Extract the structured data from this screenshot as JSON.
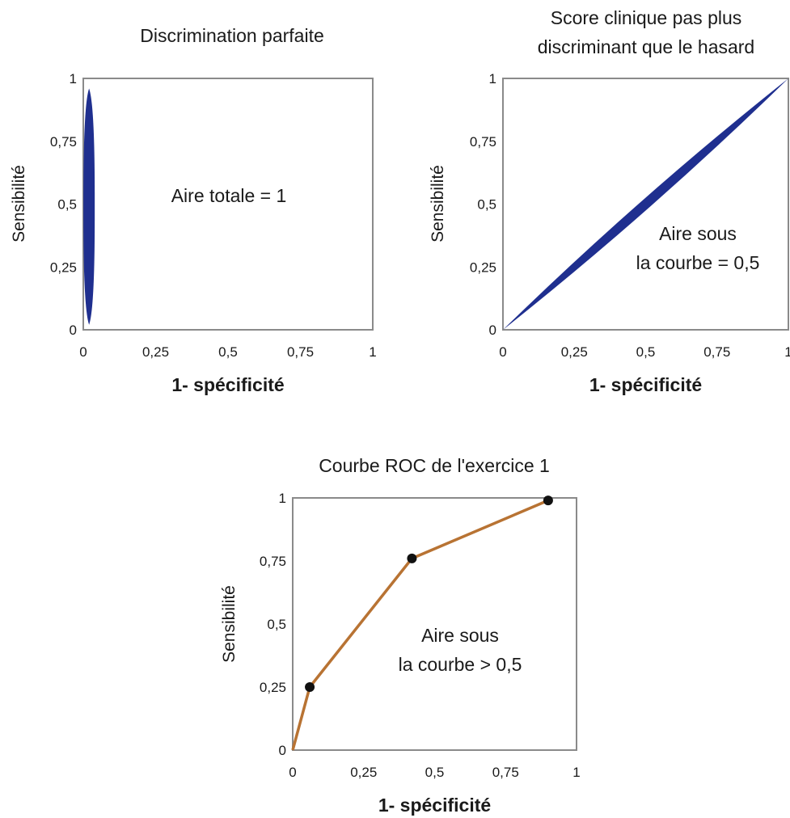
{
  "chart_data": [
    {
      "type": "line",
      "title": [
        "Discrimination parfaite"
      ],
      "xlabel": "1- spécificité",
      "ylabel": "Sensibilité",
      "xlim": [
        0,
        1
      ],
      "ylim": [
        0,
        1
      ],
      "x_ticks": [
        "0",
        "0,25",
        "0,5",
        "0,75",
        "1"
      ],
      "y_ticks": [
        "0",
        "0,25",
        "0,5",
        "0,75",
        "1"
      ],
      "curve": {
        "x": [
          0.02,
          0.02
        ],
        "y": [
          0.02,
          0.96
        ],
        "color": "#1f2f8f"
      },
      "points": [],
      "annotation": [
        "Aire totale = 1"
      ],
      "grid": false
    },
    {
      "type": "line",
      "title": [
        "Score clinique pas plus",
        "discriminant que le hasard"
      ],
      "xlabel": "1- spécificité",
      "ylabel": "Sensibilité",
      "xlim": [
        0,
        1
      ],
      "ylim": [
        0,
        1
      ],
      "x_ticks": [
        "0",
        "0,25",
        "0,5",
        "0,75",
        "1"
      ],
      "y_ticks": [
        "0",
        "0,25",
        "0,5",
        "0,75",
        "1"
      ],
      "curve": {
        "x": [
          0,
          1
        ],
        "y": [
          0,
          1
        ],
        "color": "#1f2f8f"
      },
      "points": [],
      "annotation": [
        "Aire sous",
        "la courbe = 0,5"
      ],
      "grid": false
    },
    {
      "type": "line",
      "title": [
        "Courbe ROC de l'exercice 1"
      ],
      "xlabel": "1- spécificité",
      "ylabel": "Sensibilité",
      "xlim": [
        0,
        1
      ],
      "ylim": [
        0,
        1
      ],
      "x_ticks": [
        "0",
        "0,25",
        "0,5",
        "0,75",
        "1"
      ],
      "y_ticks": [
        "0",
        "0,25",
        "0,5",
        "0,75",
        "1"
      ],
      "curve": {
        "x": [
          0,
          0.06,
          0.42,
          0.9
        ],
        "y": [
          0,
          0.25,
          0.76,
          0.99
        ],
        "color": "#b87333"
      },
      "points": [
        {
          "x": 0.06,
          "y": 0.25
        },
        {
          "x": 0.42,
          "y": 0.76
        },
        {
          "x": 0.9,
          "y": 0.99
        }
      ],
      "annotation": [
        "Aire sous",
        "la courbe > 0,5"
      ],
      "grid": false
    }
  ]
}
